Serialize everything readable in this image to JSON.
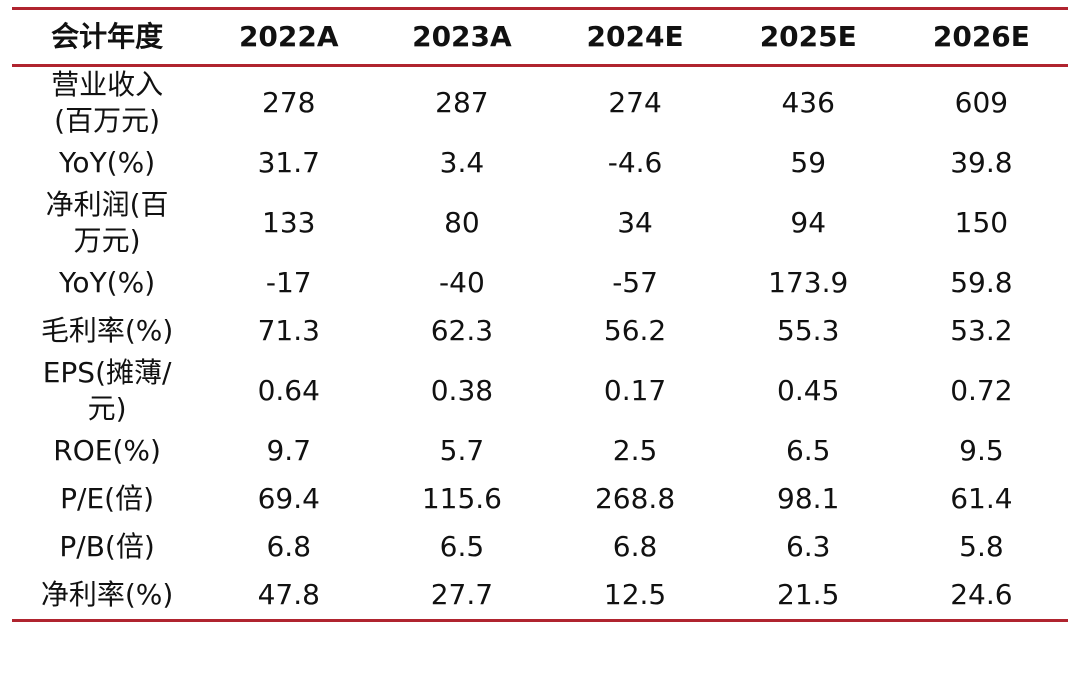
{
  "table": {
    "header": [
      "会计年度",
      "2022A",
      "2023A",
      "2024E",
      "2025E",
      "2026E"
    ],
    "rows": [
      {
        "label": [
          "营业收入",
          "(百万元)"
        ],
        "values": [
          "278",
          "287",
          "274",
          "436",
          "609"
        ]
      },
      {
        "label": [
          "YoY(%)"
        ],
        "values": [
          "31.7",
          "3.4",
          "-4.6",
          "59",
          "39.8"
        ]
      },
      {
        "label": [
          "净利润(百",
          "万元)"
        ],
        "values": [
          "133",
          "80",
          "34",
          "94",
          "150"
        ]
      },
      {
        "label": [
          "YoY(%)"
        ],
        "values": [
          "-17",
          "-40",
          "-57",
          "173.9",
          "59.8"
        ]
      },
      {
        "label": [
          "毛利率(%)"
        ],
        "values": [
          "71.3",
          "62.3",
          "56.2",
          "55.3",
          "53.2"
        ]
      },
      {
        "label": [
          "EPS(摊薄/",
          "元)"
        ],
        "values": [
          "0.64",
          "0.38",
          "0.17",
          "0.45",
          "0.72"
        ]
      },
      {
        "label": [
          "ROE(%)"
        ],
        "values": [
          "9.7",
          "5.7",
          "2.5",
          "6.5",
          "9.5"
        ]
      },
      {
        "label": [
          "P/E(倍)"
        ],
        "values": [
          "69.4",
          "115.6",
          "268.8",
          "98.1",
          "61.4"
        ]
      },
      {
        "label": [
          "P/B(倍)"
        ],
        "values": [
          "6.8",
          "6.5",
          "6.8",
          "6.3",
          "5.8"
        ]
      },
      {
        "label": [
          "净利率(%)"
        ],
        "values": [
          "47.8",
          "27.7",
          "12.5",
          "21.5",
          "24.6"
        ]
      }
    ]
  },
  "colors": {
    "rule": "#b0242f",
    "text": "#111111",
    "background": "#ffffff"
  }
}
